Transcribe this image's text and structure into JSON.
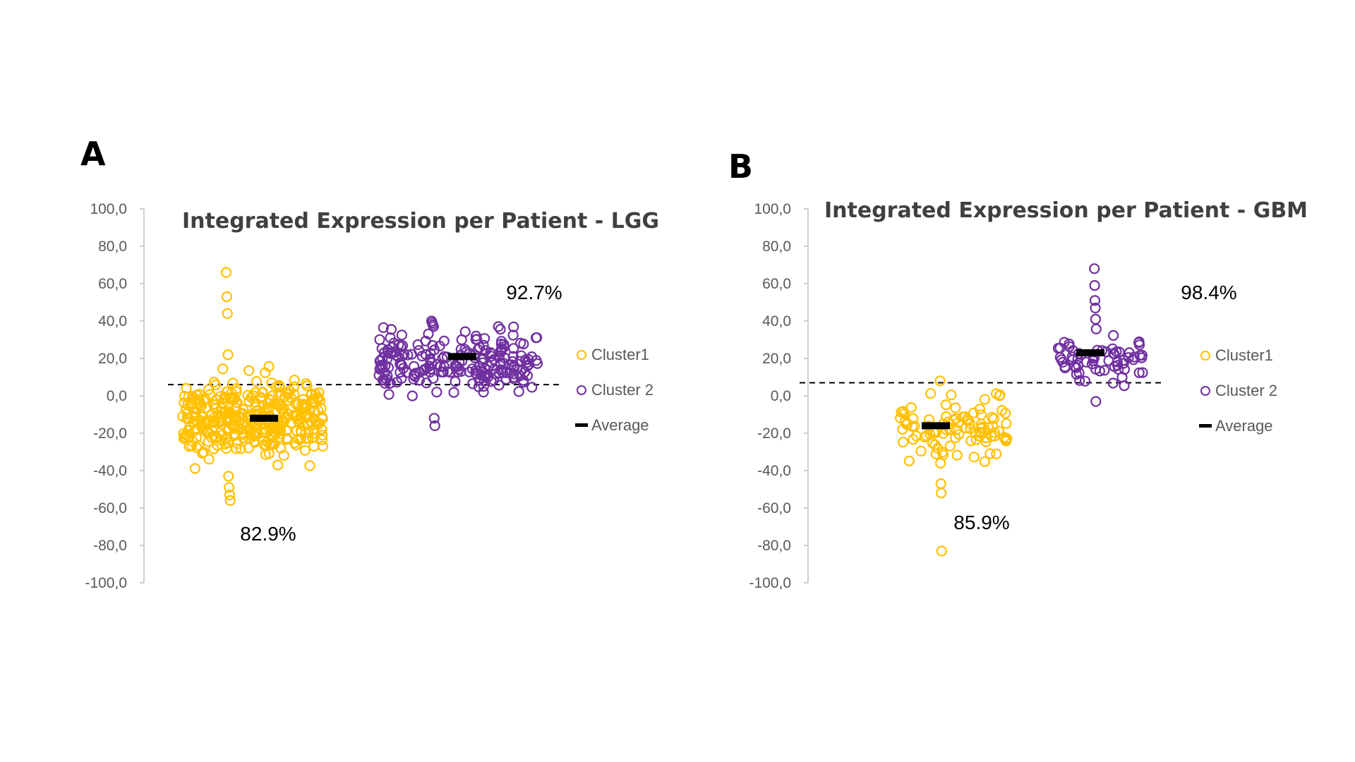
{
  "chart_data": [
    {
      "type": "scatter",
      "panel": "A",
      "title": "Integrated Expression per Patient - LGG",
      "xlabel": "",
      "ylabel": "",
      "ylim": [
        -100,
        100
      ],
      "y_ticks": [
        "100,0",
        "80,0",
        "60,0",
        "40,0",
        "20,0",
        "0,0",
        "-20,0",
        "-40,0",
        "-60,0",
        "-80,0",
        "-100,0"
      ],
      "grid": false,
      "threshold": 6,
      "legend_position": "right",
      "legend": [
        "Cluster1",
        "Cluster 2",
        "Average"
      ],
      "colors": {
        "cluster1": "#FFC000",
        "cluster2": "#7030A0",
        "average": "#000000"
      },
      "series": [
        {
          "name": "Cluster1",
          "average": -12,
          "annotation": "82.9%",
          "notable_values": [
            66,
            53,
            44,
            22,
            -43,
            -49,
            -53,
            -56
          ],
          "range": [
            -56,
            66
          ]
        },
        {
          "name": "Cluster 2",
          "average": 21,
          "annotation": "92.7%",
          "notable_values": [
            40,
            39,
            38,
            37,
            -12,
            -16
          ],
          "range": [
            -16,
            40
          ]
        }
      ]
    },
    {
      "type": "scatter",
      "panel": "B",
      "title": "Integrated Expression per Patient - GBM",
      "xlabel": "",
      "ylabel": "",
      "ylim": [
        -100,
        100
      ],
      "y_ticks": [
        "100,0",
        "80,0",
        "60,0",
        "40,0",
        "20,0",
        "0,0",
        "-20,0",
        "-40,0",
        "-60,0",
        "-80,0",
        "-100,0"
      ],
      "grid": false,
      "threshold": 7,
      "legend_position": "right",
      "legend": [
        "Cluster1",
        "Cluster 2",
        "Average"
      ],
      "colors": {
        "cluster1": "#FFC000",
        "cluster2": "#7030A0",
        "average": "#000000"
      },
      "series": [
        {
          "name": "Cluster1",
          "average": -16,
          "annotation": "85.9%",
          "notable_values": [
            8,
            -36,
            -47,
            -52,
            -83
          ],
          "range": [
            -83,
            8
          ]
        },
        {
          "name": "Cluster 2",
          "average": 23,
          "annotation": "98.4%",
          "notable_values": [
            68,
            59,
            51,
            47,
            41,
            -3
          ],
          "range": [
            -3,
            68
          ]
        }
      ]
    }
  ]
}
